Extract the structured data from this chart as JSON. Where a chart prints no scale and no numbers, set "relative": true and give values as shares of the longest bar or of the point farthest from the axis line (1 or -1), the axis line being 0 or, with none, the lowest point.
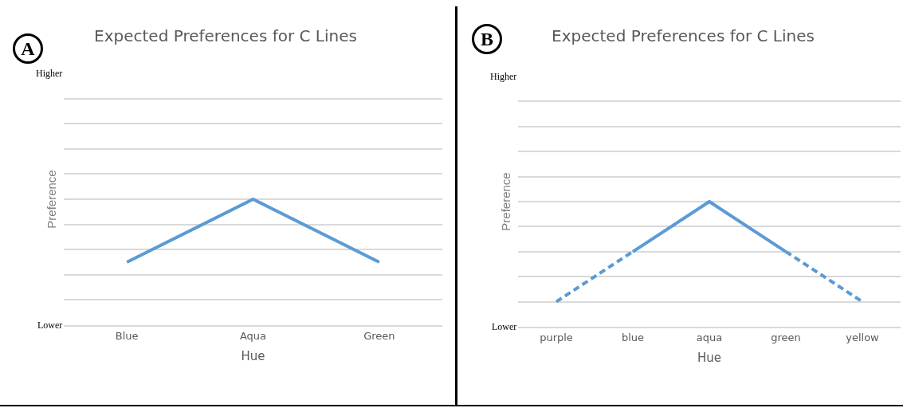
{
  "chart_data": [
    {
      "type": "line",
      "title": "Expected Preferences for C Lines",
      "xlabel": "Hue",
      "ylabel": "Preference",
      "annotations": [
        "A",
        "Higher",
        "Lower"
      ],
      "categories": [
        "Blue",
        "Aqua",
        "Green"
      ],
      "relative": true,
      "grid": "y",
      "marker": "none",
      "series": [
        {
          "color": "#5b9bd5",
          "line_style": "solid",
          "values": [
            0.5,
            1,
            0.5
          ]
        }
      ]
    },
    {
      "type": "line",
      "title": "Expected Preferences for C Lines",
      "xlabel": "Hue",
      "ylabel": "Preference",
      "annotations": [
        "B",
        "Higher",
        "Lower"
      ],
      "categories": [
        "purple",
        "blue",
        "aqua",
        "green",
        "yellow"
      ],
      "relative": true,
      "grid": "y",
      "marker": "none",
      "series": [
        {
          "color": "#5b9bd5",
          "line_style": "dashed",
          "values": [
            0.2,
            0.6,
            null,
            null,
            null
          ]
        },
        {
          "color": "#5b9bd5",
          "line_style": "solid",
          "values": [
            null,
            0.6,
            1,
            0.6,
            null
          ]
        },
        {
          "color": "#5b9bd5",
          "line_style": "dashed",
          "values": [
            null,
            null,
            null,
            0.6,
            0.2
          ]
        }
      ]
    }
  ]
}
